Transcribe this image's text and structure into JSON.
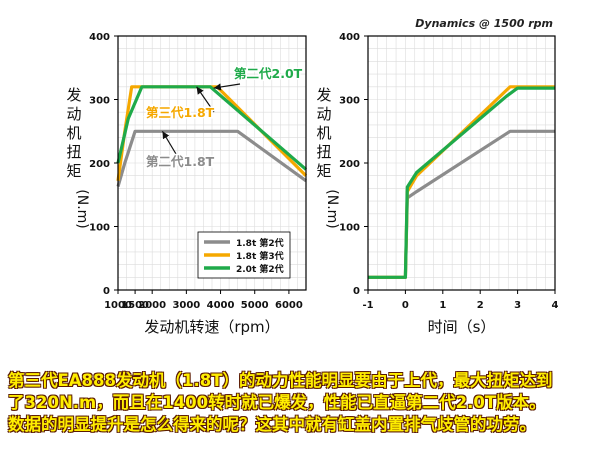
{
  "chart_data": [
    {
      "type": "line",
      "title": "",
      "ylabel": "发动机扭矩(N.m)",
      "xlabel": "发动机转速（rpm）",
      "xlim": [
        1000,
        6500
      ],
      "ylim": [
        0,
        400
      ],
      "xticks": [
        "1000",
        "1500",
        "2000",
        "3000",
        "4000",
        "5000",
        "6000"
      ],
      "xtick_values": [
        1000,
        1500,
        2000,
        3000,
        4000,
        5000,
        6000
      ],
      "yticks": [
        "0",
        "100",
        "200",
        "300",
        "400"
      ],
      "ytick_values": [
        0,
        100,
        200,
        300,
        400
      ],
      "grid": true,
      "legend_position": "bottom-right",
      "legend": [
        "1.8t 第2代",
        "1.8t 第3代",
        "2.0t 第2代"
      ],
      "series": [
        {
          "name": "1.8t 第2代",
          "color": "#8c8c8c",
          "x": [
            1000,
            1200,
            1500,
            4500,
            6500
          ],
          "y": [
            163,
            200,
            250,
            250,
            172
          ]
        },
        {
          "name": "1.8t 第3代",
          "color": "#f5a800",
          "x": [
            1000,
            1200,
            1400,
            3900,
            6500
          ],
          "y": [
            172,
            250,
            320,
            320,
            180
          ]
        },
        {
          "name": "2.0t 第2代",
          "color": "#1faa4a",
          "x": [
            1000,
            1300,
            1700,
            3700,
            6500
          ],
          "y": [
            200,
            270,
            320,
            320,
            190
          ]
        }
      ],
      "annotations": [
        {
          "text": "第二代2.0T",
          "color": "#1faa4a",
          "target": [
            3800,
            318
          ]
        },
        {
          "text": "第三代1.8T",
          "color": "#f5a800",
          "target": [
            3300,
            320
          ]
        },
        {
          "text": "第二代1.8T",
          "color": "#8c8c8c",
          "target": [
            2300,
            250
          ]
        }
      ]
    },
    {
      "type": "line",
      "title": "Dynamics @ 1500 rpm",
      "ylabel": "发动机扭矩(N.m)",
      "xlabel": "时间（s）",
      "xlim": [
        -1,
        4
      ],
      "ylim": [
        0,
        400
      ],
      "xticks": [
        "-1",
        "0",
        "1",
        "2",
        "3",
        "4"
      ],
      "xtick_values": [
        -1,
        0,
        1,
        2,
        3,
        4
      ],
      "yticks": [
        "0",
        "100",
        "200",
        "300",
        "400"
      ],
      "ytick_values": [
        0,
        100,
        200,
        300,
        400
      ],
      "grid": true,
      "series": [
        {
          "name": "1.8t 第2代",
          "color": "#8c8c8c",
          "x": [
            -1,
            0,
            0.05,
            0.3,
            2.8,
            4
          ],
          "y": [
            20,
            20,
            145,
            155,
            250,
            250
          ]
        },
        {
          "name": "1.8t 第3代",
          "color": "#f5a800",
          "x": [
            -1,
            0,
            0.05,
            0.3,
            2.8,
            4
          ],
          "y": [
            20,
            20,
            155,
            180,
            320,
            320
          ]
        },
        {
          "name": "2.0t 第2代",
          "color": "#1faa4a",
          "x": [
            -1,
            0,
            0.05,
            0.3,
            2.7,
            3.0,
            4
          ],
          "y": [
            20,
            20,
            162,
            185,
            305,
            318,
            318
          ]
        }
      ]
    }
  ],
  "caption": [
    "第三代EA888发动机（1.8T）的动力性能明显要由于上代，最大扭矩达到",
    "了320N.m，而且在1400转时就已爆发，性能已直逼第二代2.0T版本。",
    "数据的明显提升是怎么得来的呢？这其中就有缸盖内置排气歧管的功劳。"
  ]
}
